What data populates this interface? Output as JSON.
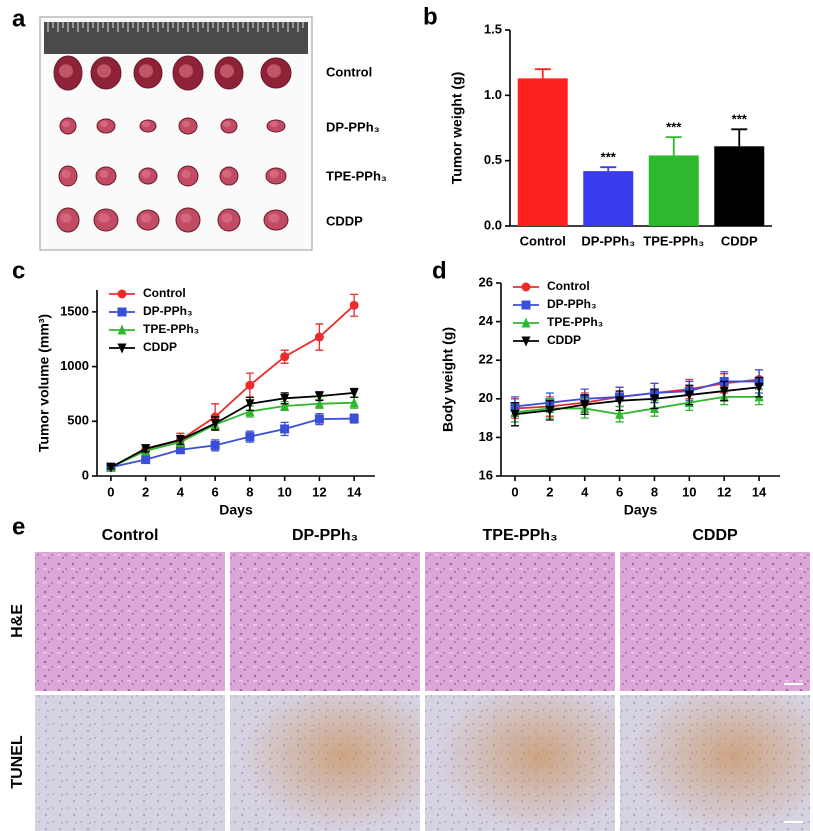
{
  "photo_panel": {
    "label": "a",
    "rows": [
      "Control",
      "DP-PPh₃",
      "TPE-PPh₃",
      "CDDP"
    ]
  },
  "chart_data": [
    {
      "type": "bar",
      "panel": "b",
      "ylabel": "Tumor weight (g)",
      "categories": [
        "Control",
        "DP-PPh₃",
        "TPE-PPh₃",
        "CDDP"
      ],
      "values": [
        1.13,
        0.42,
        0.54,
        0.61
      ],
      "errors": [
        0.07,
        0.03,
        0.14,
        0.13
      ],
      "colors": [
        "#ff2020",
        "#3b3bf0",
        "#2db82d",
        "#000000"
      ],
      "significance": [
        null,
        "***",
        "***",
        "***"
      ],
      "ylim": [
        0,
        1.5
      ],
      "yticks": [
        {
          "value": 0,
          "label": "0.0"
        },
        0.5,
        {
          "value": 1,
          "label": "1.0"
        },
        1.5
      ],
      "grid": false
    },
    {
      "type": "line",
      "panel": "c",
      "xlabel": "Days",
      "ylabel": "Tumor volume (mm³)",
      "x": [
        0,
        2,
        4,
        6,
        8,
        10,
        12,
        14
      ],
      "xlim": [
        -0.8,
        15.2
      ],
      "xticks": [
        0,
        2,
        4,
        6,
        8,
        10,
        12,
        14
      ],
      "ylim": [
        0,
        1700
      ],
      "yticks": [
        0,
        500,
        1000,
        1500
      ],
      "grid": false,
      "legend": "top-left",
      "series": [
        {
          "name": "Control",
          "color": "#ee2b2b",
          "marker": "circle",
          "values": [
            80,
            240,
            330,
            540,
            830,
            1090,
            1270,
            1560
          ],
          "errors": [
            20,
            40,
            60,
            120,
            110,
            60,
            120,
            100
          ]
        },
        {
          "name": "DP-PPh₃",
          "color": "#3a4fd8",
          "marker": "square",
          "values": [
            80,
            150,
            240,
            280,
            360,
            430,
            520,
            525
          ],
          "errors": [
            15,
            20,
            30,
            50,
            50,
            60,
            50,
            40
          ]
        },
        {
          "name": "TPE-PPh₃",
          "color": "#2db82d",
          "marker": "triangle-up",
          "values": [
            80,
            230,
            310,
            470,
            590,
            640,
            660,
            670
          ],
          "errors": [
            15,
            30,
            40,
            40,
            50,
            40,
            40,
            50
          ]
        },
        {
          "name": "CDDP",
          "color": "#000000",
          "marker": "triangle-down",
          "values": [
            80,
            250,
            330,
            480,
            660,
            710,
            730,
            760
          ],
          "errors": [
            15,
            30,
            40,
            60,
            60,
            50,
            40,
            40
          ]
        }
      ]
    },
    {
      "type": "line",
      "panel": "d",
      "xlabel": "Days",
      "ylabel": "Body weight (g)",
      "x": [
        0,
        2,
        4,
        6,
        8,
        10,
        12,
        14
      ],
      "xlim": [
        -0.8,
        15.2
      ],
      "xticks": [
        0,
        2,
        4,
        6,
        8,
        10,
        12,
        14
      ],
      "ylim": [
        16,
        26
      ],
      "yticks": [
        16,
        18,
        20,
        22,
        24,
        26
      ],
      "grid": false,
      "legend": "top-left",
      "series": [
        {
          "name": "Control",
          "color": "#ee2b2b",
          "marker": "circle",
          "values": [
            19.5,
            19.6,
            19.8,
            20.1,
            20.3,
            20.5,
            20.8,
            21.0
          ],
          "errors": [
            0.5,
            0.5,
            0.5,
            0.5,
            0.5,
            0.5,
            0.5,
            0.5
          ]
        },
        {
          "name": "DP-PPh₃",
          "color": "#3a4fd8",
          "marker": "square",
          "values": [
            19.6,
            19.8,
            20.0,
            20.1,
            20.3,
            20.4,
            20.9,
            20.9
          ],
          "errors": [
            0.5,
            0.5,
            0.5,
            0.5,
            0.5,
            0.5,
            0.5,
            0.6
          ]
        },
        {
          "name": "TPE-PPh₃",
          "color": "#2db82d",
          "marker": "triangle-up",
          "values": [
            19.3,
            19.5,
            19.5,
            19.2,
            19.5,
            19.8,
            20.1,
            20.1
          ],
          "errors": [
            0.5,
            0.5,
            0.5,
            0.4,
            0.4,
            0.4,
            0.4,
            0.4
          ]
        },
        {
          "name": "CDDP",
          "color": "#000000",
          "marker": "triangle-down",
          "values": [
            19.2,
            19.4,
            19.7,
            19.9,
            20.0,
            20.2,
            20.4,
            20.6
          ],
          "errors": [
            0.6,
            0.5,
            0.5,
            0.5,
            0.5,
            0.5,
            0.5,
            0.5
          ]
        }
      ]
    }
  ],
  "histology_panel": {
    "label": "e",
    "columns": [
      "Control",
      "DP-PPh₃",
      "TPE-PPh₃",
      "CDDP"
    ],
    "rows": [
      "H&E",
      "TUNEL"
    ]
  }
}
